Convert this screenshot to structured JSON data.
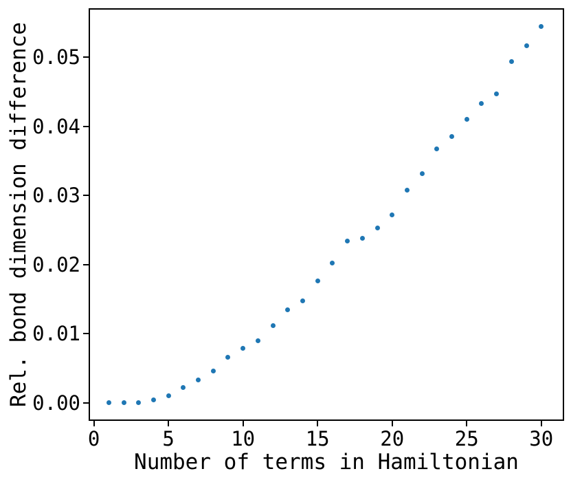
{
  "chart_data": {
    "type": "scatter",
    "title": "",
    "xlabel": "Number of terms in Hamiltonian",
    "ylabel": "Rel. bond dimension difference",
    "x": [
      1,
      2,
      3,
      4,
      5,
      6,
      7,
      8,
      9,
      10,
      11,
      12,
      13,
      14,
      15,
      16,
      17,
      18,
      19,
      20,
      21,
      22,
      23,
      24,
      25,
      26,
      27,
      28,
      29,
      30
    ],
    "y": [
      0.0,
      0.0,
      0.0,
      0.0004,
      0.001,
      0.0022,
      0.0033,
      0.0046,
      0.0066,
      0.0079,
      0.009,
      0.0112,
      0.0135,
      0.0148,
      0.0176,
      0.0202,
      0.0234,
      0.0238,
      0.0253,
      0.0272,
      0.0308,
      0.0332,
      0.0368,
      0.0385,
      0.041,
      0.0433,
      0.0447,
      0.0494,
      0.0517,
      0.0545
    ],
    "xlim": [
      -0.26,
      31.44
    ],
    "ylim": [
      -0.0024,
      0.0569
    ],
    "xtick_values": [
      0,
      5,
      10,
      15,
      20,
      25,
      30
    ],
    "xtick_labels": [
      "0",
      "5",
      "10",
      "15",
      "20",
      "25",
      "30"
    ],
    "ytick_values": [
      0.0,
      0.01,
      0.02,
      0.03,
      0.04,
      0.05
    ],
    "ytick_labels": [
      "0.00",
      "0.01",
      "0.02",
      "0.03",
      "0.04",
      "0.05"
    ],
    "marker_color": "#1f77b4",
    "marker_diameter_px": 7,
    "axis_color": "#000000",
    "background_color": "#ffffff",
    "grid": false,
    "legend": null
  }
}
